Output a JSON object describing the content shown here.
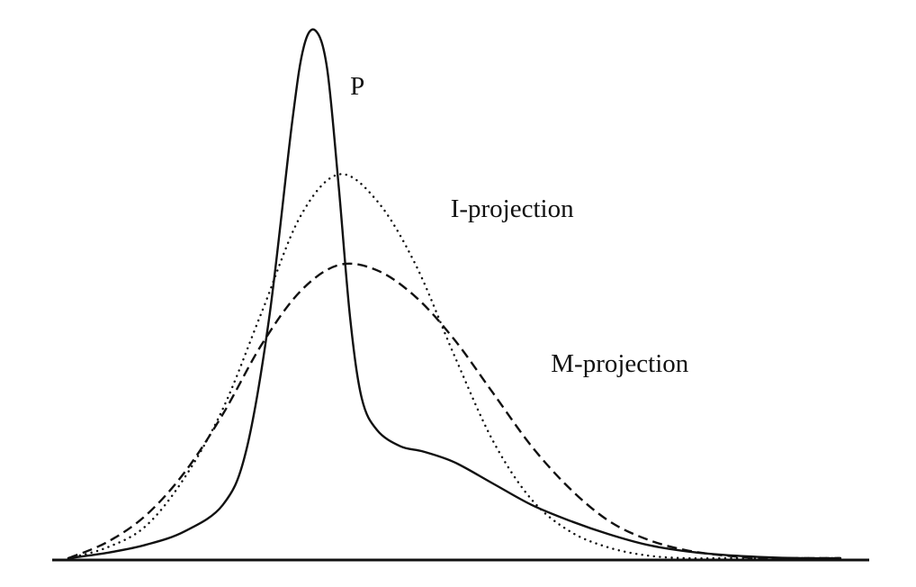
{
  "chart_data": {
    "type": "line",
    "title": "",
    "xlabel": "",
    "ylabel": "",
    "xlim": [
      0,
      10
    ],
    "ylim": [
      0,
      1
    ],
    "grid": false,
    "axes": {
      "x_baseline": true,
      "y_axis": false,
      "ticks": false
    },
    "series": [
      {
        "name": "P",
        "style": "solid",
        "x": [
          0.0,
          0.5,
          1.0,
          1.5,
          2.0,
          2.3,
          2.6,
          2.9,
          3.05,
          3.2,
          3.35,
          3.5,
          3.65,
          3.8,
          4.0,
          4.3,
          4.6,
          5.0,
          5.5,
          6.0,
          6.5,
          7.0,
          7.5,
          8.0,
          8.5,
          9.0,
          9.5,
          10.0
        ],
        "y": [
          0.0,
          0.01,
          0.025,
          0.05,
          0.1,
          0.2,
          0.45,
          0.82,
          0.96,
          0.99,
          0.92,
          0.7,
          0.45,
          0.3,
          0.24,
          0.21,
          0.2,
          0.18,
          0.14,
          0.1,
          0.07,
          0.045,
          0.025,
          0.013,
          0.006,
          0.002,
          0.0,
          0.0
        ]
      },
      {
        "name": "I-projection",
        "style": "dotted",
        "x": [
          0.0,
          0.5,
          1.0,
          1.5,
          2.0,
          2.5,
          3.0,
          3.5,
          4.0,
          4.5,
          5.0,
          5.5,
          6.0,
          6.5,
          7.0,
          7.5,
          8.0,
          8.5,
          9.0,
          9.5,
          10.0
        ],
        "y": [
          0.0,
          0.02,
          0.06,
          0.15,
          0.28,
          0.46,
          0.64,
          0.72,
          0.67,
          0.55,
          0.38,
          0.22,
          0.11,
          0.05,
          0.02,
          0.005,
          0.0,
          0.0,
          0.0,
          0.0,
          0.0
        ]
      },
      {
        "name": "M-projection",
        "style": "dashed",
        "x": [
          0.0,
          0.5,
          1.0,
          1.5,
          2.0,
          2.5,
          3.0,
          3.5,
          4.0,
          4.5,
          5.0,
          5.5,
          6.0,
          6.5,
          7.0,
          7.5,
          8.0,
          8.5,
          9.0,
          9.5,
          10.0
        ],
        "y": [
          0.0,
          0.03,
          0.08,
          0.16,
          0.27,
          0.4,
          0.5,
          0.55,
          0.54,
          0.49,
          0.41,
          0.31,
          0.21,
          0.13,
          0.07,
          0.035,
          0.015,
          0.005,
          0.0,
          0.0,
          0.0
        ]
      }
    ],
    "annotations": [
      {
        "text": "P",
        "x": 3.65,
        "y": 0.87
      },
      {
        "text": "I-projection",
        "x": 4.95,
        "y": 0.64
      },
      {
        "text": "M-projection",
        "x": 6.25,
        "y": 0.35
      }
    ]
  }
}
